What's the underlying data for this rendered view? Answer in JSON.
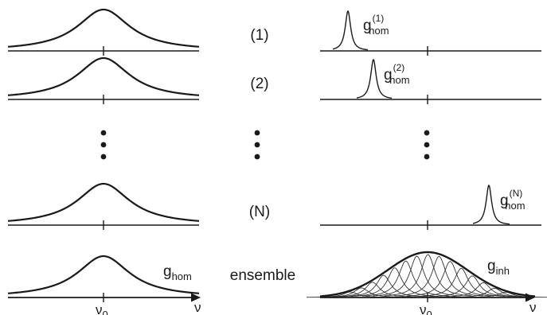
{
  "rows": [
    {
      "label": "(1)",
      "line_index": "(1)"
    },
    {
      "label": "(2)",
      "line_index": "(2)"
    },
    {
      "label": "(N)",
      "line_index": "(N)"
    }
  ],
  "ensemble_label": "ensemble",
  "dots": "⋮",
  "left_curve_label": {
    "main": "g",
    "sub": "hom"
  },
  "right_curve_label": {
    "main": "g",
    "sub": "inh"
  },
  "line_label": {
    "main": "g",
    "sub": "hom"
  },
  "axis": {
    "center_tick": "ν",
    "center_sub": "0",
    "variable": "ν"
  },
  "colors": {
    "ink": "#1a1a1a",
    "thin": "#333333"
  }
}
